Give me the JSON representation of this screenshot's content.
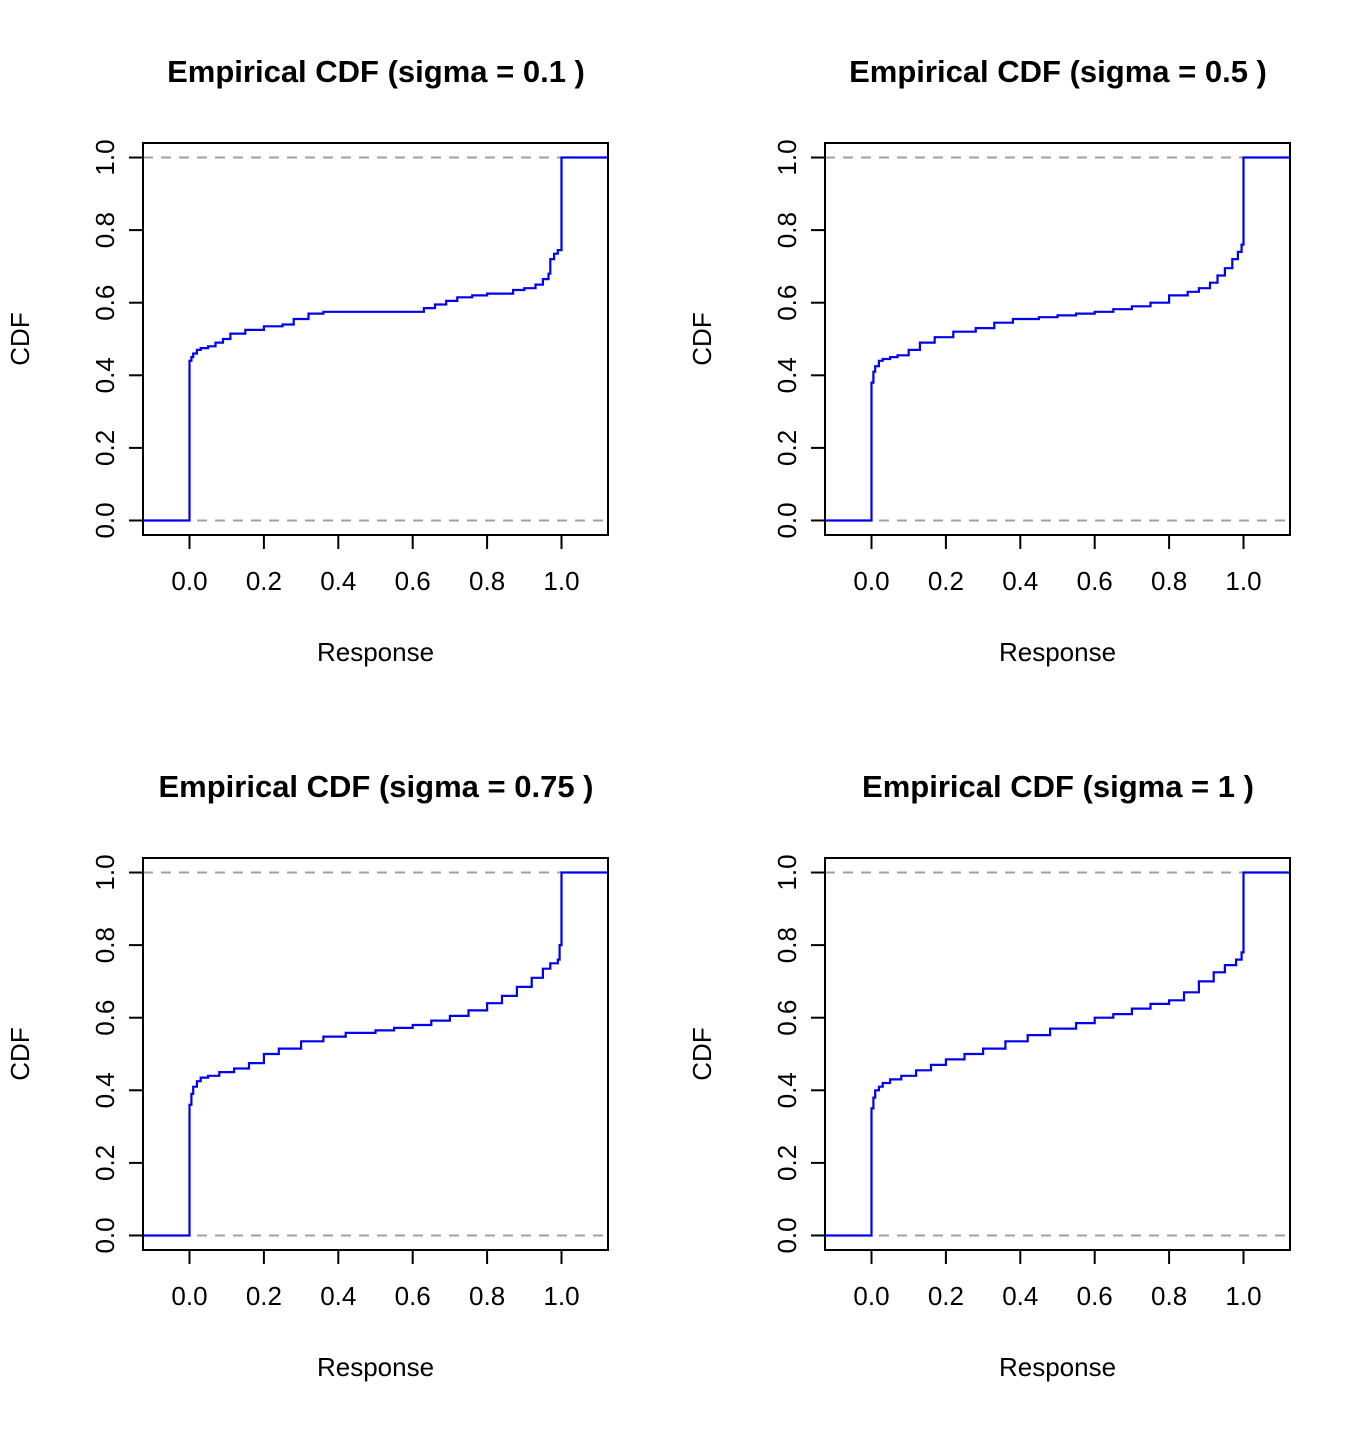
{
  "colors": {
    "series": "#0000ee",
    "reference": "#a0a0a0",
    "axis": "#000000"
  },
  "chart_data": [
    {
      "type": "line",
      "title": "Empirical CDF (sigma = 0.1 )",
      "xlabel": "Response",
      "ylabel": "CDF",
      "xlim": [
        -0.125,
        1.125
      ],
      "ylim": [
        -0.04,
        1.04
      ],
      "xticks": [
        "0.0",
        "0.2",
        "0.4",
        "0.6",
        "0.8",
        "1.0"
      ],
      "yticks": [
        "0.0",
        "0.2",
        "0.4",
        "0.6",
        "0.8",
        "1.0"
      ],
      "reference_lines": [
        0,
        1
      ],
      "step": true,
      "x": [
        -0.125,
        0.0,
        0.0,
        0.0,
        0.005,
        0.01,
        0.02,
        0.03,
        0.05,
        0.07,
        0.09,
        0.11,
        0.15,
        0.2,
        0.25,
        0.28,
        0.32,
        0.36,
        0.5,
        0.6,
        0.63,
        0.66,
        0.69,
        0.72,
        0.76,
        0.8,
        0.85,
        0.87,
        0.9,
        0.93,
        0.95,
        0.965,
        0.97,
        0.98,
        0.99,
        1.0,
        1.0,
        1.125
      ],
      "y": [
        0.0,
        0.0,
        0.33,
        0.44,
        0.45,
        0.46,
        0.47,
        0.475,
        0.48,
        0.49,
        0.5,
        0.515,
        0.525,
        0.535,
        0.54,
        0.555,
        0.57,
        0.575,
        0.575,
        0.575,
        0.585,
        0.595,
        0.605,
        0.615,
        0.62,
        0.625,
        0.625,
        0.635,
        0.64,
        0.65,
        0.665,
        0.68,
        0.72,
        0.735,
        0.745,
        0.76,
        1.0,
        1.0
      ]
    },
    {
      "type": "line",
      "title": "Empirical CDF (sigma = 0.5 )",
      "xlabel": "Response",
      "ylabel": "CDF",
      "xlim": [
        -0.125,
        1.125
      ],
      "ylim": [
        -0.04,
        1.04
      ],
      "xticks": [
        "0.0",
        "0.2",
        "0.4",
        "0.6",
        "0.8",
        "1.0"
      ],
      "yticks": [
        "0.0",
        "0.2",
        "0.4",
        "0.6",
        "0.8",
        "1.0"
      ],
      "reference_lines": [
        0,
        1
      ],
      "step": true,
      "x": [
        -0.125,
        0.0,
        0.0,
        0.0,
        0.005,
        0.01,
        0.02,
        0.03,
        0.05,
        0.07,
        0.1,
        0.13,
        0.17,
        0.22,
        0.28,
        0.33,
        0.38,
        0.45,
        0.5,
        0.55,
        0.6,
        0.65,
        0.7,
        0.75,
        0.8,
        0.85,
        0.88,
        0.91,
        0.93,
        0.95,
        0.97,
        0.985,
        0.995,
        1.0,
        1.0,
        1.125
      ],
      "y": [
        0.0,
        0.0,
        0.3,
        0.38,
        0.41,
        0.425,
        0.44,
        0.445,
        0.45,
        0.455,
        0.47,
        0.49,
        0.505,
        0.52,
        0.53,
        0.545,
        0.555,
        0.56,
        0.565,
        0.57,
        0.575,
        0.582,
        0.59,
        0.6,
        0.62,
        0.63,
        0.64,
        0.655,
        0.675,
        0.695,
        0.72,
        0.74,
        0.76,
        0.77,
        1.0,
        1.0
      ]
    },
    {
      "type": "line",
      "title": "Empirical CDF (sigma = 0.75 )",
      "xlabel": "Response",
      "ylabel": "CDF",
      "xlim": [
        -0.125,
        1.125
      ],
      "ylim": [
        -0.04,
        1.04
      ],
      "xticks": [
        "0.0",
        "0.2",
        "0.4",
        "0.6",
        "0.8",
        "1.0"
      ],
      "yticks": [
        "0.0",
        "0.2",
        "0.4",
        "0.6",
        "0.8",
        "1.0"
      ],
      "reference_lines": [
        0,
        1
      ],
      "step": true,
      "x": [
        -0.125,
        0.0,
        0.0,
        0.0,
        0.005,
        0.01,
        0.02,
        0.03,
        0.05,
        0.08,
        0.12,
        0.16,
        0.2,
        0.24,
        0.3,
        0.36,
        0.42,
        0.5,
        0.55,
        0.6,
        0.65,
        0.7,
        0.75,
        0.8,
        0.84,
        0.88,
        0.92,
        0.95,
        0.97,
        0.99,
        0.995,
        1.0,
        1.0,
        1.125
      ],
      "y": [
        0.0,
        0.0,
        0.3,
        0.36,
        0.39,
        0.41,
        0.425,
        0.435,
        0.44,
        0.45,
        0.46,
        0.475,
        0.5,
        0.515,
        0.535,
        0.548,
        0.558,
        0.565,
        0.572,
        0.58,
        0.592,
        0.605,
        0.62,
        0.64,
        0.66,
        0.685,
        0.71,
        0.735,
        0.75,
        0.76,
        0.8,
        0.82,
        1.0,
        1.0
      ]
    },
    {
      "type": "line",
      "title": "Empirical CDF (sigma = 1 )",
      "xlabel": "Response",
      "ylabel": "CDF",
      "xlim": [
        -0.125,
        1.125
      ],
      "ylim": [
        -0.04,
        1.04
      ],
      "xticks": [
        "0.0",
        "0.2",
        "0.4",
        "0.6",
        "0.8",
        "1.0"
      ],
      "yticks": [
        "0.0",
        "0.2",
        "0.4",
        "0.6",
        "0.8",
        "1.0"
      ],
      "reference_lines": [
        0,
        1
      ],
      "step": true,
      "x": [
        -0.125,
        0.0,
        0.0,
        0.0,
        0.005,
        0.01,
        0.02,
        0.03,
        0.05,
        0.08,
        0.12,
        0.16,
        0.2,
        0.25,
        0.3,
        0.36,
        0.42,
        0.48,
        0.55,
        0.6,
        0.65,
        0.7,
        0.75,
        0.8,
        0.84,
        0.88,
        0.92,
        0.95,
        0.98,
        0.995,
        1.0,
        1.0,
        1.125
      ],
      "y": [
        0.0,
        0.0,
        0.3,
        0.35,
        0.38,
        0.4,
        0.41,
        0.42,
        0.43,
        0.44,
        0.455,
        0.47,
        0.485,
        0.5,
        0.515,
        0.535,
        0.552,
        0.57,
        0.585,
        0.6,
        0.61,
        0.625,
        0.638,
        0.648,
        0.67,
        0.7,
        0.725,
        0.745,
        0.76,
        0.78,
        0.81,
        1.0,
        1.0
      ]
    }
  ]
}
